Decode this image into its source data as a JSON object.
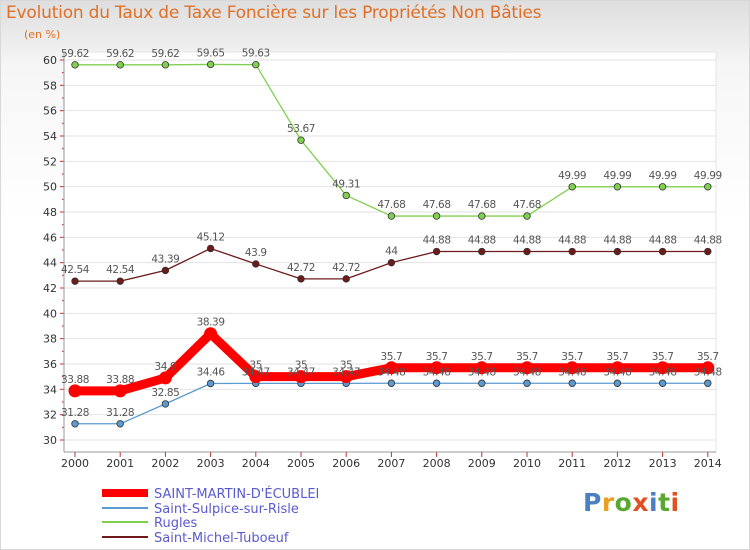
{
  "header": {
    "title": "Evolution du Taux de Taxe Foncière sur les Propriétés Non Bâties",
    "unit": "(en %)"
  },
  "logo": {
    "text": "Proxiti",
    "colors": [
      "#4a7fc1",
      "#e8a020",
      "#5aa830",
      "#e05020",
      "#4a7fc1",
      "#5aa830",
      "#e05020"
    ]
  },
  "chart_data": {
    "type": "line",
    "x": [
      2000,
      2001,
      2002,
      2003,
      2004,
      2005,
      2006,
      2007,
      2008,
      2009,
      2010,
      2011,
      2012,
      2013,
      2014
    ],
    "ylim": [
      30,
      60
    ],
    "yticks": [
      30,
      32,
      34,
      36,
      38,
      40,
      42,
      44,
      46,
      48,
      50,
      52,
      54,
      56,
      58,
      60
    ],
    "grid": "horizontal",
    "legend_placement": "bottom-left",
    "series": [
      {
        "name": "SAINT-MARTIN-D'ÉCUBLEI",
        "color": "#ff0000",
        "emphasis": true,
        "values": [
          33.88,
          33.88,
          34.9,
          38.39,
          35,
          35,
          35,
          35.7,
          35.7,
          35.7,
          35.7,
          35.7,
          35.7,
          35.7,
          35.7
        ],
        "labels": [
          "33.88",
          "33.88",
          "34.9",
          "38.39",
          "35",
          "35",
          "35",
          "35.7",
          "35.7",
          "35.7",
          "35.7",
          "35.7",
          "35.7",
          "35.7",
          "35.7"
        ]
      },
      {
        "name": "Saint-Sulpice-sur-Risle",
        "color": "#5b9ad0",
        "emphasis": false,
        "values": [
          31.28,
          31.28,
          32.85,
          34.46,
          34.47,
          34.47,
          34.47,
          34.48,
          34.48,
          34.48,
          34.48,
          34.48,
          34.48,
          34.48,
          34.48
        ],
        "labels": [
          "31.28",
          "31.28",
          "32.85",
          "34.46",
          "34.47",
          "34.47",
          "34.47",
          "34.48",
          "34.48",
          "34.48",
          "34.48",
          "34.48",
          "34.48",
          "34.48",
          "34.48"
        ]
      },
      {
        "name": "Rugles",
        "color": "#80d050",
        "emphasis": false,
        "values": [
          59.62,
          59.62,
          59.62,
          59.65,
          59.63,
          53.67,
          49.31,
          47.68,
          47.68,
          47.68,
          47.68,
          49.99,
          49.99,
          49.99,
          49.99
        ],
        "labels": [
          "59.62",
          "59.62",
          "59.62",
          "59.65",
          "59.63",
          "53.67",
          "49.31",
          "47.68",
          "47.68",
          "47.68",
          "47.68",
          "49.99",
          "49.99",
          "49.99",
          "49.99"
        ]
      },
      {
        "name": "Saint-Michel-Tuboeuf",
        "color": "#6e1a1a",
        "emphasis": false,
        "values": [
          42.54,
          42.54,
          43.39,
          45.12,
          43.9,
          42.72,
          42.72,
          44,
          44.88,
          44.88,
          44.88,
          44.88,
          44.88,
          44.88,
          44.88
        ],
        "labels": [
          "42.54",
          "42.54",
          "43.39",
          "45.12",
          "43.9",
          "42.72",
          "42.72",
          "44",
          "44.88",
          "44.88",
          "44.88",
          "44.88",
          "44.88",
          "44.88",
          "44.88"
        ]
      }
    ]
  }
}
